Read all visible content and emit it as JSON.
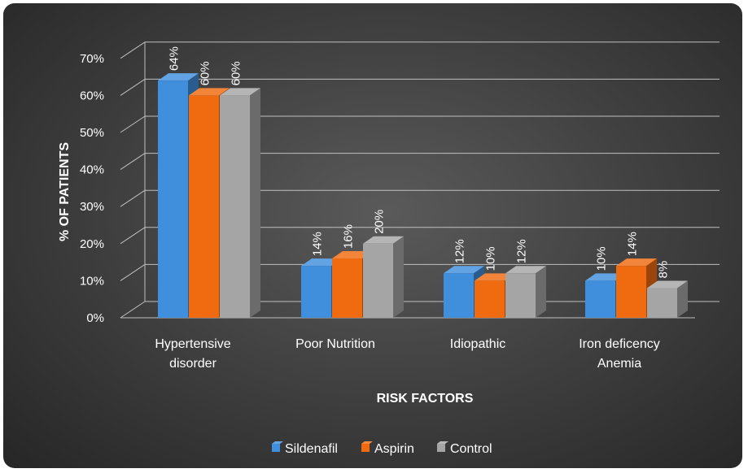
{
  "chart_data": {
    "type": "bar",
    "categories": [
      [
        "Hypertensive",
        "disorder"
      ],
      [
        "Poor Nutrition"
      ],
      [
        "Idiopathic"
      ],
      [
        "Iron deficency",
        "Anemia"
      ]
    ],
    "series": [
      {
        "name": "Sildenafil",
        "values": [
          64,
          14,
          12,
          10
        ],
        "labels": [
          "64%",
          "14%",
          "12%",
          "10%"
        ],
        "color": "#3f8fdd"
      },
      {
        "name": "Aspirin",
        "values": [
          60,
          16,
          10,
          14
        ],
        "labels": [
          "60%",
          "16%",
          "10%",
          "14%"
        ],
        "color": "#f06a0f"
      },
      {
        "name": "Control",
        "values": [
          60,
          20,
          12,
          8
        ],
        "labels": [
          "60%",
          "20%",
          "12%",
          "8%"
        ],
        "color": "#a5a5a5"
      }
    ],
    "ylabel": "% OF PATIENTS",
    "xlabel": "RISK FACTORS",
    "ylim": [
      0,
      70
    ],
    "yticks": [
      "0%",
      "10%",
      "20%",
      "30%",
      "40%",
      "50%",
      "60%",
      "70%"
    ],
    "legend_position": "bottom",
    "style": "3d-clustered-column",
    "colors": {
      "background": "#3d3d3d",
      "grid": "#bfbfbf",
      "text": "#ffffff"
    }
  }
}
